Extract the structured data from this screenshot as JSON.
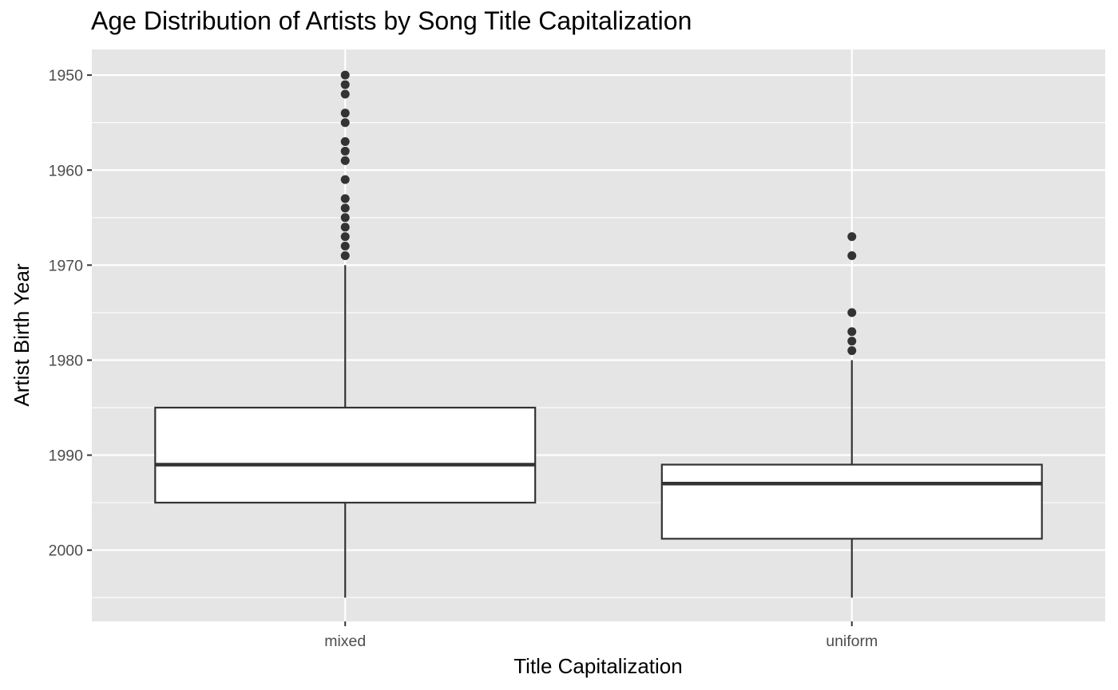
{
  "chart_data": {
    "type": "boxplot",
    "title": "Age Distribution of Artists by Song Title Capitalization",
    "xlabel": "Title Capitalization",
    "ylabel": "Artist Birth Year",
    "y_reversed": true,
    "ylim": [
      1947.3,
      2007.5
    ],
    "yticks": [
      1950,
      1960,
      1970,
      1980,
      1990,
      2000
    ],
    "grid": true,
    "categories": [
      "mixed",
      "uniform"
    ],
    "boxes": [
      {
        "category": "mixed",
        "whisker_low": 1970,
        "q1": 1985,
        "median": 1991,
        "q3": 1995,
        "whisker_high": 2005,
        "outliers": [
          1950,
          1951,
          1952,
          1954,
          1955,
          1957,
          1958,
          1959,
          1961,
          1963,
          1964,
          1965,
          1966,
          1967,
          1968,
          1969
        ]
      },
      {
        "category": "uniform",
        "whisker_low": 1980,
        "q1": 1991,
        "median": 1993,
        "q3": 1998.8,
        "whisker_high": 2005,
        "outliers": [
          1967,
          1969,
          1975,
          1977,
          1978,
          1979
        ]
      }
    ],
    "colors": {
      "panel_bg": "#e5e5e5",
      "grid": "#ffffff",
      "box_fill": "#ffffff",
      "box_line": "#333333",
      "outlier": "#333333"
    }
  }
}
